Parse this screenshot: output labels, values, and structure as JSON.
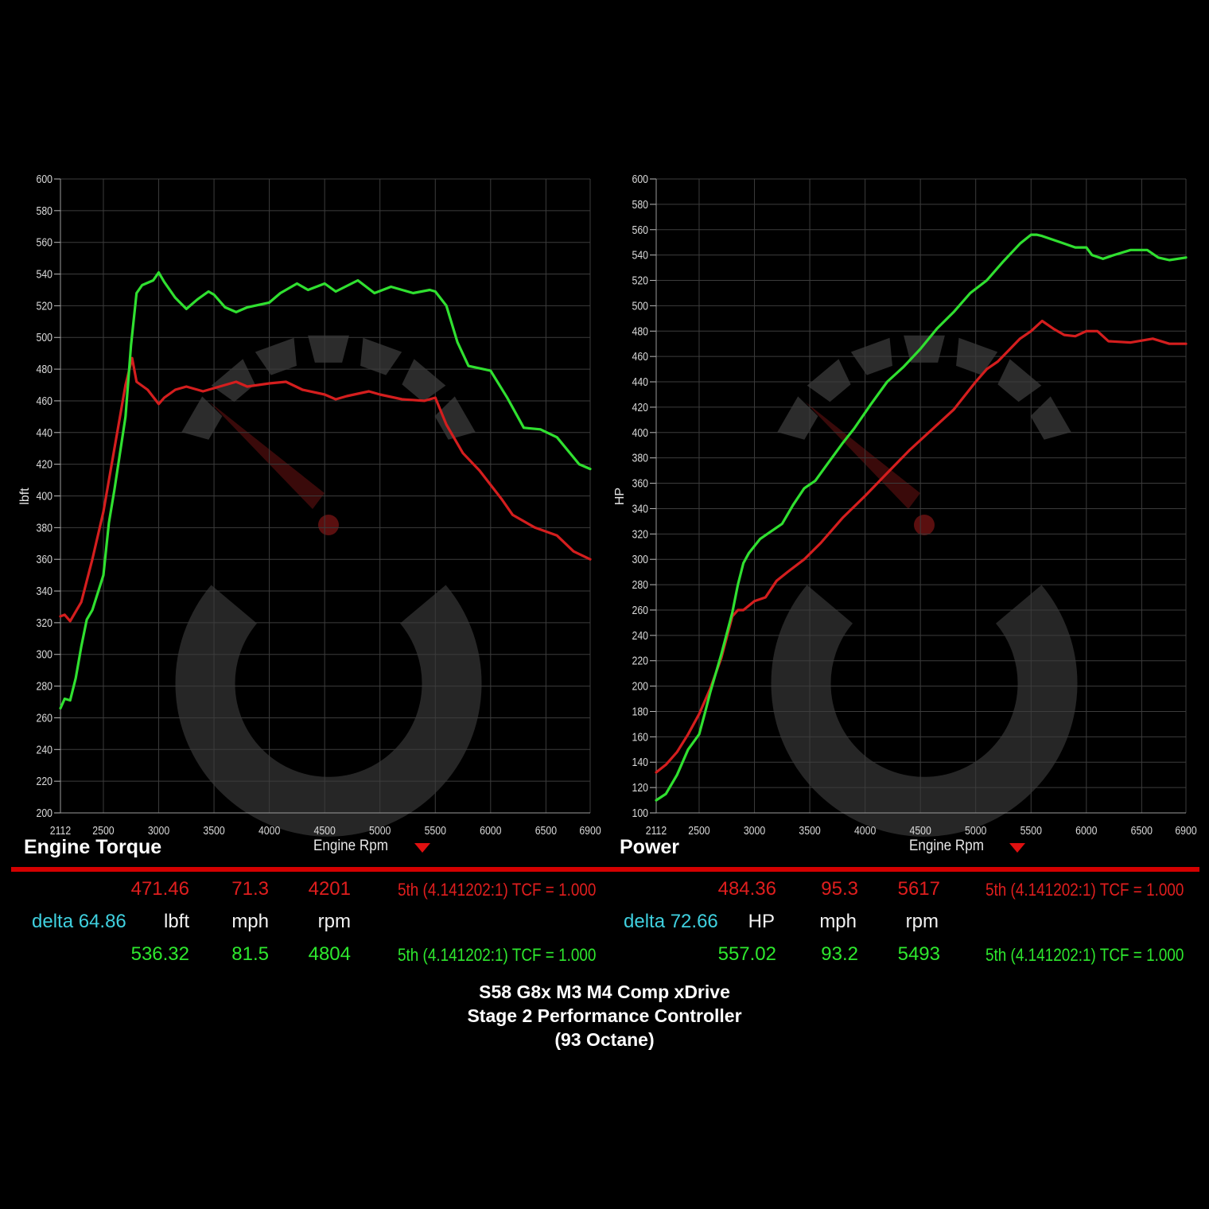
{
  "chart_data": [
    {
      "type": "line",
      "title": "Engine Torque",
      "xlabel": "Engine Rpm",
      "ylabel": "lbft",
      "xlim": [
        2112,
        6900
      ],
      "ylim": [
        200,
        600
      ],
      "xticks": [
        2112,
        2500,
        3000,
        3500,
        4000,
        4500,
        5000,
        5500,
        6000,
        6500,
        6900
      ],
      "yticks": [
        200,
        220,
        240,
        260,
        280,
        300,
        320,
        340,
        360,
        380,
        400,
        420,
        440,
        460,
        480,
        500,
        520,
        540,
        560,
        580,
        600
      ],
      "grid": true,
      "series": [
        {
          "color": "#d41e1e",
          "x": [
            2112,
            2150,
            2200,
            2300,
            2400,
            2500,
            2600,
            2700,
            2760,
            2800,
            2900,
            3000,
            3050,
            3150,
            3250,
            3400,
            3500,
            3700,
            3800,
            4000,
            4150,
            4300,
            4500,
            4600,
            4700,
            4900,
            5000,
            5200,
            5400,
            5500,
            5600,
            5750,
            5900,
            6100,
            6200,
            6400,
            6600,
            6750,
            6900
          ],
          "y": [
            324,
            325,
            321,
            333,
            360,
            390,
            430,
            470,
            487,
            472,
            467,
            458,
            462,
            467,
            469,
            466,
            468,
            472,
            469,
            471,
            472,
            467,
            464,
            461,
            463,
            466,
            464,
            461,
            460,
            462,
            445,
            427,
            416,
            398,
            388,
            380,
            375,
            365,
            360
          ]
        },
        {
          "color": "#30e030",
          "x": [
            2112,
            2150,
            2200,
            2250,
            2300,
            2350,
            2400,
            2500,
            2550,
            2600,
            2700,
            2750,
            2800,
            2850,
            2950,
            3000,
            3050,
            3150,
            3250,
            3350,
            3450,
            3500,
            3600,
            3700,
            3800,
            4000,
            4100,
            4250,
            4350,
            4500,
            4600,
            4800,
            4950,
            5100,
            5300,
            5450,
            5500,
            5600,
            5700,
            5800,
            6000,
            6150,
            6300,
            6450,
            6600,
            6800,
            6900
          ],
          "y": [
            266,
            272,
            271,
            285,
            305,
            322,
            328,
            350,
            383,
            404,
            450,
            495,
            528,
            533,
            536,
            541,
            535,
            525,
            518,
            524,
            529,
            527,
            519,
            516,
            519,
            522,
            528,
            534,
            530,
            534,
            529,
            536,
            528,
            532,
            528,
            530,
            529,
            520,
            497,
            482,
            479,
            462,
            443,
            442,
            437,
            420,
            417
          ]
        }
      ]
    },
    {
      "type": "line",
      "title": "Power",
      "xlabel": "Engine Rpm",
      "ylabel": "HP",
      "xlim": [
        2112,
        6900
      ],
      "ylim": [
        100,
        600
      ],
      "xticks": [
        2112,
        2500,
        3000,
        3500,
        4000,
        4500,
        5000,
        5500,
        6000,
        6500,
        6900
      ],
      "yticks": [
        100,
        120,
        140,
        160,
        180,
        200,
        220,
        240,
        260,
        280,
        300,
        320,
        340,
        360,
        380,
        400,
        420,
        440,
        460,
        480,
        500,
        520,
        540,
        560,
        580,
        600
      ],
      "grid": true,
      "series": [
        {
          "color": "#d41e1e",
          "x": [
            2112,
            2200,
            2300,
            2400,
            2500,
            2600,
            2700,
            2800,
            2850,
            2900,
            3000,
            3100,
            3200,
            3300,
            3450,
            3600,
            3800,
            4000,
            4200,
            4400,
            4600,
            4800,
            5000,
            5100,
            5200,
            5300,
            5400,
            5500,
            5600,
            5700,
            5800,
            5900,
            6000,
            6100,
            6200,
            6400,
            6600,
            6750,
            6900
          ],
          "y": [
            132,
            138,
            148,
            162,
            178,
            198,
            222,
            255,
            260,
            260,
            267,
            270,
            283,
            290,
            300,
            313,
            333,
            350,
            368,
            386,
            402,
            418,
            440,
            450,
            456,
            465,
            474,
            480,
            488,
            482,
            477,
            476,
            480,
            480,
            472,
            471,
            474,
            470,
            470
          ]
        },
        {
          "color": "#30e030",
          "x": [
            2112,
            2200,
            2300,
            2400,
            2500,
            2550,
            2600,
            2700,
            2800,
            2850,
            2900,
            2950,
            3050,
            3150,
            3250,
            3350,
            3450,
            3550,
            3650,
            3800,
            3900,
            4050,
            4200,
            4350,
            4500,
            4650,
            4800,
            4950,
            5100,
            5250,
            5400,
            5500,
            5550,
            5600,
            5700,
            5800,
            5900,
            6000,
            6050,
            6150,
            6250,
            6400,
            6550,
            6650,
            6750,
            6900
          ],
          "y": [
            110,
            115,
            130,
            150,
            162,
            178,
            195,
            225,
            258,
            280,
            297,
            305,
            316,
            322,
            328,
            343,
            356,
            362,
            374,
            392,
            403,
            422,
            440,
            452,
            466,
            482,
            495,
            510,
            520,
            535,
            549,
            556,
            556,
            555,
            552,
            549,
            546,
            546,
            540,
            537,
            540,
            544,
            544,
            538,
            536,
            538
          ]
        }
      ]
    }
  ],
  "torque_table": {
    "run1": {
      "value": "471.46",
      "mph": "71.3",
      "rpm": "4201",
      "gear": "5th (4.141202:1) TCF = 1.000"
    },
    "delta": "delta 64.86",
    "units": {
      "value": "lbft",
      "mph": "mph",
      "rpm": "rpm"
    },
    "run2": {
      "value": "536.32",
      "mph": "81.5",
      "rpm": "4804",
      "gear": "5th (4.141202:1) TCF = 1.000"
    }
  },
  "power_table": {
    "run1": {
      "value": "484.36",
      "mph": "95.3",
      "rpm": "5617",
      "gear": "5th (4.141202:1) TCF = 1.000"
    },
    "delta": "delta 72.66",
    "units": {
      "value": "HP",
      "mph": "mph",
      "rpm": "rpm"
    },
    "run2": {
      "value": "557.02",
      "mph": "93.2",
      "rpm": "5493",
      "gear": "5th (4.141202:1) TCF = 1.000"
    }
  },
  "footer": {
    "line1": "S58 G8x M3 M4 Comp xDrive",
    "line2": "Stage 2 Performance Controller",
    "line3": "(93 Octane)"
  },
  "colors": {
    "run1": "#d41e1e",
    "run2": "#30e030",
    "delta": "#3fd0df",
    "divider": "#d40000"
  }
}
